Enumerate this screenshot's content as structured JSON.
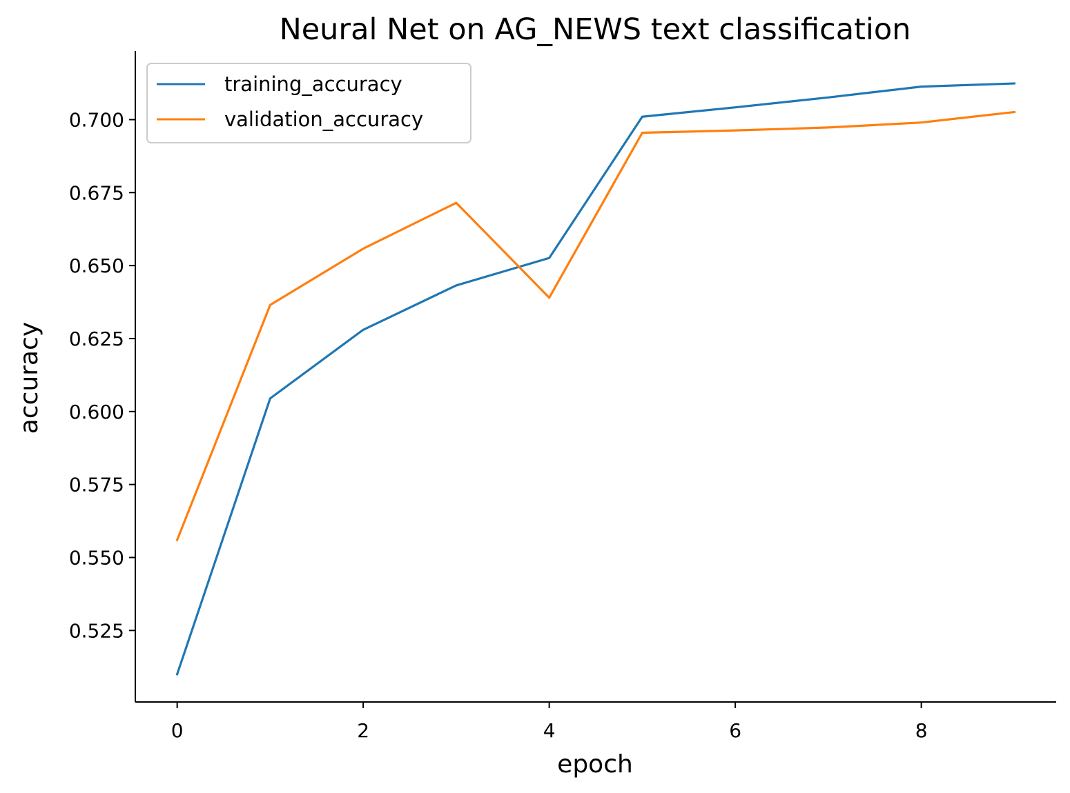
{
  "chart_data": {
    "type": "line",
    "title": "Neural Net on AG_NEWS text classification",
    "xlabel": "epoch",
    "ylabel": "accuracy",
    "x": [
      0,
      1,
      2,
      3,
      4,
      5,
      6,
      7,
      8,
      9
    ],
    "xlim": [
      -0.45,
      9.45
    ],
    "ylim": [
      0.5005,
      0.7235
    ],
    "xticks": [
      0,
      2,
      4,
      6,
      8
    ],
    "xtick_labels": [
      "0",
      "2",
      "4",
      "6",
      "8"
    ],
    "yticks": [
      0.525,
      0.55,
      0.575,
      0.6,
      0.625,
      0.65,
      0.675,
      0.7
    ],
    "ytick_labels": [
      "0.525",
      "0.550",
      "0.575",
      "0.600",
      "0.625",
      "0.650",
      "0.675",
      "0.700"
    ],
    "grid": false,
    "legend_position": "upper-left",
    "series": [
      {
        "name": "training_accuracy",
        "color": "#1f77b4",
        "values": [
          0.51,
          0.6045,
          0.628,
          0.6432,
          0.6526,
          0.701,
          0.7042,
          0.7076,
          0.7113,
          0.7124
        ]
      },
      {
        "name": "validation_accuracy",
        "color": "#ff7f0e",
        "values": [
          0.556,
          0.6365,
          0.6558,
          0.6715,
          0.639,
          0.6955,
          0.6963,
          0.6973,
          0.699,
          0.7026
        ]
      }
    ]
  }
}
